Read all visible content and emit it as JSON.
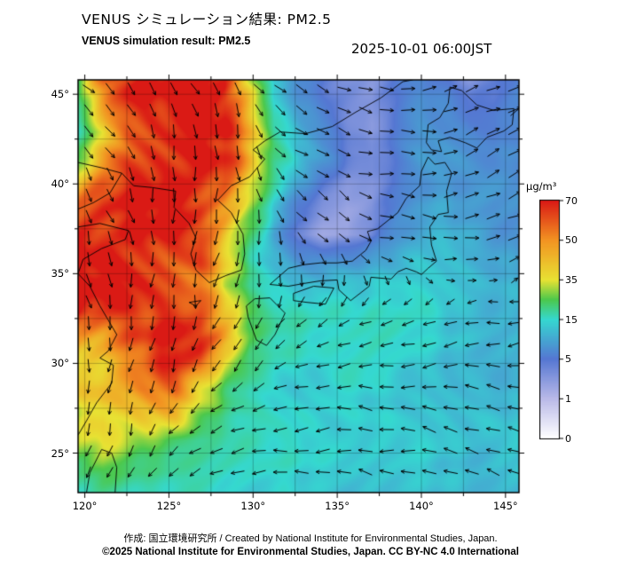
{
  "header": {
    "title_jp": "VENUS シミュレーション結果: PM2.5",
    "title_en": "VENUS simulation result: PM2.5",
    "timestamp": "2025-10-01 06:00JST"
  },
  "map": {
    "extent": {
      "lon": [
        119.6,
        145.8
      ],
      "lat": [
        22.8,
        45.8
      ]
    },
    "graticule_step": 2.5,
    "lon_tick_values": [
      120,
      125,
      130,
      135,
      140,
      145
    ],
    "lon_tick_labels": [
      "120°",
      "125°",
      "130°",
      "135°",
      "140°",
      "145°"
    ],
    "lat_tick_values": [
      25,
      30,
      35,
      40,
      45
    ],
    "lat_tick_labels": [
      "25°",
      "30°",
      "35°",
      "40°",
      "45°"
    ],
    "coastlines": [
      [
        [
          119.6,
          41.2
        ],
        [
          121.0,
          40.9
        ],
        [
          122.2,
          40.6
        ],
        [
          121.5,
          39.5
        ],
        [
          120.5,
          38.95
        ],
        [
          119.6,
          38.6
        ]
      ],
      [
        [
          119.6,
          37.6
        ],
        [
          120.9,
          37.8
        ],
        [
          122.6,
          37.4
        ],
        [
          122.4,
          36.9
        ],
        [
          121.0,
          36.4
        ],
        [
          119.9,
          35.8
        ],
        [
          119.6,
          35.0
        ],
        [
          120.3,
          34.3
        ],
        [
          120.9,
          33.2
        ],
        [
          121.9,
          31.6
        ],
        [
          121.4,
          30.7
        ],
        [
          120.9,
          30.3
        ],
        [
          121.7,
          29.9
        ],
        [
          121.6,
          28.9
        ],
        [
          120.7,
          27.8
        ],
        [
          120.1,
          26.8
        ],
        [
          119.6,
          26.0
        ]
      ],
      [
        [
          122.2,
          40.6
        ],
        [
          122.9,
          39.9
        ],
        [
          124.0,
          39.8
        ],
        [
          125.4,
          39.6
        ],
        [
          125.3,
          38.7
        ],
        [
          126.2,
          37.8
        ],
        [
          126.6,
          37.0
        ],
        [
          126.3,
          36.1
        ],
        [
          126.6,
          35.2
        ],
        [
          127.4,
          34.5
        ],
        [
          128.4,
          34.9
        ],
        [
          129.3,
          35.2
        ],
        [
          129.5,
          36.1
        ],
        [
          129.4,
          37.2
        ],
        [
          128.7,
          38.4
        ],
        [
          127.9,
          39.1
        ],
        [
          128.7,
          39.9
        ],
        [
          129.8,
          40.4
        ],
        [
          130.7,
          41.4
        ],
        [
          130.0,
          41.9
        ],
        [
          130.7,
          42.4
        ],
        [
          131.6,
          42.9
        ],
        [
          133.1,
          42.8
        ],
        [
          134.7,
          43.2
        ],
        [
          136.1,
          44.0
        ],
        [
          137.6,
          44.8
        ],
        [
          138.9,
          45.7
        ],
        [
          139.5,
          45.8
        ]
      ],
      [
        [
          130.1,
          33.6
        ],
        [
          129.6,
          33.2
        ],
        [
          129.7,
          32.6
        ],
        [
          130.2,
          31.3
        ],
        [
          130.8,
          31.0
        ],
        [
          131.3,
          31.6
        ],
        [
          131.9,
          32.8
        ],
        [
          131.0,
          33.65
        ],
        [
          130.1,
          33.6
        ]
      ],
      [
        [
          132.4,
          33.5
        ],
        [
          133.2,
          33.4
        ],
        [
          134.3,
          33.3
        ],
        [
          134.8,
          34.2
        ],
        [
          133.6,
          34.3
        ],
        [
          132.4,
          33.9
        ],
        [
          132.4,
          33.5
        ]
      ],
      [
        [
          131.0,
          34.4
        ],
        [
          132.1,
          34.3
        ],
        [
          133.0,
          34.45
        ],
        [
          134.0,
          34.6
        ],
        [
          135.0,
          34.65
        ],
        [
          135.1,
          34.1
        ],
        [
          135.8,
          33.5
        ],
        [
          136.9,
          34.3
        ],
        [
          137.0,
          34.8
        ],
        [
          138.2,
          34.7
        ],
        [
          138.6,
          35.1
        ],
        [
          139.1,
          35.3
        ],
        [
          139.7,
          35.1
        ],
        [
          140.0,
          34.95
        ],
        [
          140.4,
          35.3
        ],
        [
          140.9,
          35.7
        ],
        [
          140.6,
          36.6
        ],
        [
          140.5,
          37.6
        ],
        [
          141.0,
          38.3
        ],
        [
          141.6,
          38.4
        ],
        [
          141.5,
          39.6
        ],
        [
          141.8,
          40.6
        ],
        [
          141.4,
          41.2
        ],
        [
          140.8,
          41.1
        ],
        [
          140.4,
          41.5
        ],
        [
          140.0,
          40.7
        ],
        [
          139.9,
          39.9
        ],
        [
          139.1,
          39.2
        ],
        [
          138.6,
          38.4
        ],
        [
          137.4,
          37.5
        ],
        [
          136.8,
          37.35
        ],
        [
          137.0,
          36.8
        ],
        [
          136.7,
          36.3
        ],
        [
          135.9,
          35.7
        ],
        [
          135.0,
          35.6
        ],
        [
          134.0,
          35.6
        ],
        [
          133.0,
          35.5
        ],
        [
          132.1,
          35.3
        ],
        [
          131.0,
          34.4
        ]
      ],
      [
        [
          140.3,
          42.3
        ],
        [
          140.6,
          41.9
        ],
        [
          141.2,
          41.8
        ],
        [
          141.0,
          42.4
        ],
        [
          141.7,
          42.6
        ],
        [
          142.6,
          42.3
        ],
        [
          143.3,
          42.0
        ],
        [
          143.9,
          42.6
        ],
        [
          144.9,
          42.95
        ],
        [
          145.4,
          43.3
        ],
        [
          145.5,
          44.2
        ],
        [
          144.3,
          44.1
        ],
        [
          143.3,
          44.4
        ],
        [
          142.4,
          45.2
        ],
        [
          141.7,
          45.4
        ],
        [
          141.6,
          44.5
        ],
        [
          141.1,
          43.7
        ],
        [
          140.4,
          43.3
        ],
        [
          140.3,
          42.3
        ]
      ],
      [
        [
          126.2,
          33.4
        ],
        [
          126.9,
          33.5
        ],
        [
          126.6,
          33.2
        ],
        [
          126.2,
          33.4
        ]
      ],
      [
        [
          120.1,
          22.8
        ],
        [
          120.3,
          23.9
        ],
        [
          121.0,
          25.2
        ],
        [
          121.6,
          25.0
        ],
        [
          121.9,
          24.2
        ],
        [
          121.8,
          22.8
        ]
      ],
      [
        [
          145.3,
          43.8
        ],
        [
          145.8,
          44.2
        ]
      ]
    ]
  },
  "chart_data": {
    "type": "heatmap",
    "title": "VENUS simulation result: PM2.5",
    "units": "µg/m³",
    "x_range_lon": [
      119.6,
      145.8
    ],
    "y_range_lat": [
      22.8,
      45.8
    ],
    "value_range": [
      0,
      70
    ],
    "grid_rows_north_to_south": 17,
    "grid_cols_west_to_east": 19,
    "grid": [
      [
        25,
        60,
        72,
        72,
        73,
        72,
        65,
        35,
        12,
        7,
        5,
        4,
        3,
        5,
        7,
        5,
        3,
        4,
        6
      ],
      [
        20,
        45,
        70,
        73,
        74,
        73,
        68,
        45,
        15,
        9,
        6,
        4,
        3,
        5,
        8,
        7,
        5,
        5,
        7
      ],
      [
        18,
        35,
        65,
        73,
        74,
        73,
        70,
        50,
        20,
        11,
        7,
        4,
        3,
        6,
        9,
        8,
        7,
        6,
        8
      ],
      [
        25,
        45,
        68,
        74,
        74,
        73,
        68,
        48,
        24,
        13,
        8,
        5,
        4,
        6,
        9,
        9,
        8,
        7,
        8
      ],
      [
        40,
        60,
        72,
        74,
        74,
        72,
        62,
        38,
        18,
        9,
        5,
        3,
        3,
        5,
        8,
        9,
        8,
        8,
        8
      ],
      [
        55,
        68,
        73,
        74,
        73,
        70,
        55,
        30,
        12,
        5,
        3,
        2,
        3,
        6,
        9,
        10,
        9,
        8,
        8
      ],
      [
        68,
        72,
        73,
        73,
        71,
        66,
        45,
        24,
        10,
        4,
        2,
        2,
        4,
        8,
        10,
        11,
        10,
        9,
        8
      ],
      [
        72,
        73,
        72,
        70,
        68,
        62,
        40,
        20,
        13,
        8,
        7,
        8,
        10,
        12,
        13,
        12,
        11,
        10,
        10
      ],
      [
        73,
        72,
        70,
        66,
        64,
        58,
        35,
        20,
        16,
        13,
        12,
        13,
        14,
        15,
        14,
        13,
        12,
        11,
        11
      ],
      [
        70,
        66,
        64,
        62,
        68,
        62,
        42,
        24,
        18,
        16,
        15,
        15,
        16,
        16,
        15,
        13,
        12,
        11,
        11
      ],
      [
        50,
        48,
        55,
        62,
        70,
        68,
        45,
        22,
        17,
        16,
        15,
        15,
        16,
        15,
        14,
        13,
        12,
        11,
        11
      ],
      [
        38,
        36,
        45,
        58,
        70,
        60,
        32,
        19,
        16,
        15,
        15,
        15,
        15,
        14,
        14,
        13,
        12,
        11,
        11
      ],
      [
        35,
        42,
        45,
        52,
        58,
        42,
        25,
        17,
        15,
        14,
        14,
        14,
        14,
        13,
        13,
        12,
        12,
        11,
        11
      ],
      [
        30,
        40,
        36,
        38,
        40,
        30,
        20,
        16,
        15,
        15,
        14,
        14,
        14,
        13,
        13,
        13,
        12,
        12,
        12
      ],
      [
        32,
        36,
        28,
        25,
        22,
        19,
        17,
        16,
        15,
        15,
        14,
        14,
        14,
        13,
        13,
        13,
        12,
        12,
        12
      ],
      [
        22,
        26,
        22,
        19,
        18,
        17,
        16,
        15,
        15,
        14,
        14,
        14,
        13,
        13,
        13,
        12,
        12,
        12,
        12
      ],
      [
        17,
        19,
        18,
        17,
        16,
        15,
        14,
        14,
        14,
        13,
        13,
        13,
        13,
        12,
        12,
        12,
        12,
        11,
        11
      ]
    ],
    "wind": {
      "u": [
        [
          0.7,
          0.5,
          0.3,
          0.8,
          1.0,
          0.9,
          0.8
        ],
        [
          0.5,
          0.25,
          0.15,
          0.7,
          0.9,
          0.9,
          0.9
        ],
        [
          0.35,
          0.1,
          -0.1,
          0.4,
          0.8,
          1.0,
          0.9
        ],
        [
          0.2,
          -0.1,
          -0.4,
          -0.5,
          -0.7,
          -0.9,
          -0.9
        ],
        [
          0.0,
          -0.3,
          -0.7,
          -0.9,
          -1.0,
          -1.0,
          -0.9
        ],
        [
          -0.2,
          -0.5,
          -0.9,
          -1.0,
          -1.0,
          -1.0,
          -0.9
        ]
      ],
      "v": [
        [
          -0.7,
          -0.8,
          -0.9,
          -0.5,
          0.0,
          0.3,
          0.5
        ],
        [
          -0.8,
          -0.9,
          -1.0,
          -0.6,
          -0.2,
          0.2,
          0.4
        ],
        [
          -0.9,
          -1.0,
          -1.0,
          -0.8,
          -0.4,
          0.0,
          0.2
        ],
        [
          -0.9,
          -0.9,
          -0.8,
          -0.5,
          -0.3,
          -0.2,
          -0.1
        ],
        [
          -0.8,
          -0.7,
          -0.5,
          -0.2,
          0.1,
          0.15,
          0.2
        ],
        [
          -0.6,
          -0.4,
          -0.2,
          0.0,
          0.15,
          0.2,
          0.25
        ]
      ]
    }
  },
  "colorbar": {
    "unit": "µg/m³",
    "tick_values": [
      0,
      1,
      5,
      15,
      35,
      50,
      70
    ],
    "tick_labels_top_to_bottom": [
      "70",
      "50",
      "35",
      "15",
      "5",
      "1",
      "0"
    ],
    "stops": [
      {
        "v": 0,
        "c": "#ffffff"
      },
      {
        "v": 1,
        "c": "#b9b9e8"
      },
      {
        "v": 5,
        "c": "#5577d2"
      },
      {
        "v": 15,
        "c": "#35d8d0"
      },
      {
        "v": 25,
        "c": "#4cc84c"
      },
      {
        "v": 35,
        "c": "#e8e233"
      },
      {
        "v": 50,
        "c": "#f29422"
      },
      {
        "v": 70,
        "c": "#da1a15"
      }
    ]
  },
  "footer": {
    "credit": "作成: 国立環境研究所 / Created by National Institute for Environmental Studies, Japan.",
    "license": "©2025 National Institute for Environmental Studies, Japan. CC BY-NC 4.0 International"
  }
}
